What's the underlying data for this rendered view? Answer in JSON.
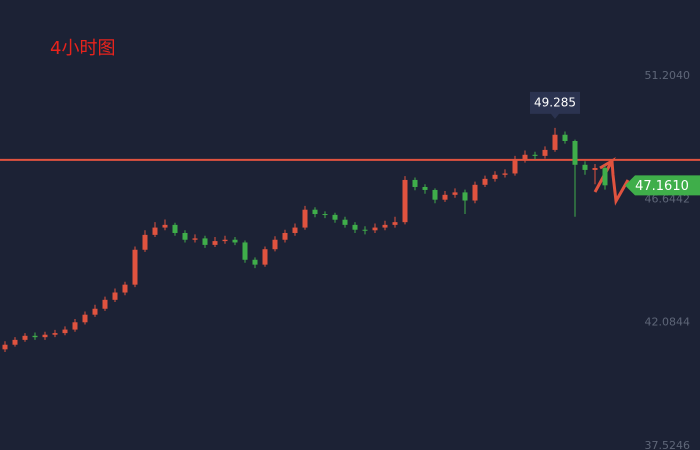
{
  "chart_data": {
    "type": "candlestick",
    "title": "4小时图",
    "open": [
      41.1,
      41.27,
      41.45,
      41.6,
      41.55,
      41.64,
      41.7,
      41.83,
      42.1,
      42.38,
      42.6,
      42.93,
      43.2,
      43.49,
      44.78,
      45.33,
      45.6,
      45.7,
      45.4,
      45.15,
      45.2,
      44.96,
      45.1,
      45.15,
      45.05,
      44.41,
      44.23,
      44.8,
      45.15,
      45.4,
      45.6,
      46.26,
      46.1,
      46.07,
      45.89,
      45.7,
      45.52,
      45.5,
      45.6,
      45.7,
      45.8,
      47.36,
      47.1,
      46.99,
      46.63,
      46.81,
      46.9,
      46.6,
      47.18,
      47.4,
      47.55,
      47.6,
      48.1,
      48.29,
      48.25,
      48.47,
      49.03,
      48.8,
      47.92,
      47.73,
      47.8
    ],
    "high": [
      41.4,
      41.55,
      41.7,
      41.72,
      41.75,
      41.82,
      41.95,
      42.22,
      42.5,
      42.75,
      43.05,
      43.35,
      43.6,
      44.9,
      45.5,
      45.8,
      45.9,
      45.78,
      45.5,
      45.35,
      45.3,
      45.25,
      45.3,
      45.25,
      45.12,
      44.5,
      44.9,
      45.28,
      45.52,
      45.75,
      46.4,
      46.35,
      46.2,
      46.15,
      46.0,
      45.8,
      45.65,
      45.75,
      45.85,
      46.0,
      47.5,
      47.45,
      47.2,
      47.05,
      46.95,
      47.05,
      47.0,
      47.3,
      47.52,
      47.68,
      47.75,
      48.25,
      48.45,
      48.4,
      48.6,
      49.285,
      49.15,
      48.85,
      48.05,
      47.95,
      47.9
    ],
    "low": [
      41.0,
      41.2,
      41.38,
      41.45,
      41.45,
      41.55,
      41.62,
      41.75,
      42.02,
      42.3,
      42.52,
      42.85,
      43.1,
      43.4,
      44.7,
      45.25,
      45.5,
      45.3,
      45.05,
      45.05,
      44.85,
      44.88,
      45.0,
      44.95,
      44.3,
      44.1,
      44.15,
      44.72,
      45.05,
      45.3,
      45.52,
      45.98,
      45.95,
      45.78,
      45.6,
      45.4,
      45.35,
      45.4,
      45.5,
      45.6,
      45.72,
      46.98,
      46.85,
      46.5,
      46.55,
      46.7,
      46.1,
      46.5,
      47.1,
      47.3,
      47.45,
      47.52,
      48.0,
      48.12,
      48.15,
      48.4,
      48.7,
      46.0,
      47.55,
      47.2,
      47.0
    ],
    "close": [
      41.27,
      41.45,
      41.6,
      41.55,
      41.64,
      41.7,
      41.83,
      42.1,
      42.38,
      42.6,
      42.93,
      43.2,
      43.49,
      44.78,
      45.33,
      45.6,
      45.7,
      45.4,
      45.15,
      45.2,
      44.96,
      45.1,
      45.15,
      45.05,
      44.41,
      44.23,
      44.8,
      45.15,
      45.4,
      45.6,
      46.26,
      46.1,
      46.07,
      45.89,
      45.7,
      45.52,
      45.5,
      45.6,
      45.7,
      45.8,
      47.36,
      47.1,
      46.99,
      46.63,
      46.81,
      46.9,
      46.6,
      47.18,
      47.4,
      47.55,
      47.6,
      48.1,
      48.29,
      48.25,
      48.47,
      49.03,
      48.8,
      47.92,
      47.73,
      47.8,
      47.161
    ],
    "up_color": "#e0533f",
    "down_color": "#3fae4a",
    "ylim": [
      37.38,
      54.01
    ],
    "yticks": [
      {
        "value": 37.5246,
        "label": "37.5246"
      },
      {
        "value": 42.0844,
        "label": "42.0844"
      },
      {
        "value": 46.6442,
        "label": "46.6442"
      },
      {
        "value": 51.204,
        "label": "51.2040"
      }
    ],
    "reference_line": 48.1,
    "reference_color": "#e0533f",
    "last_price": {
      "value": 47.161,
      "label": "47.1610"
    },
    "last_price_color": "#3fae4a"
  }
}
